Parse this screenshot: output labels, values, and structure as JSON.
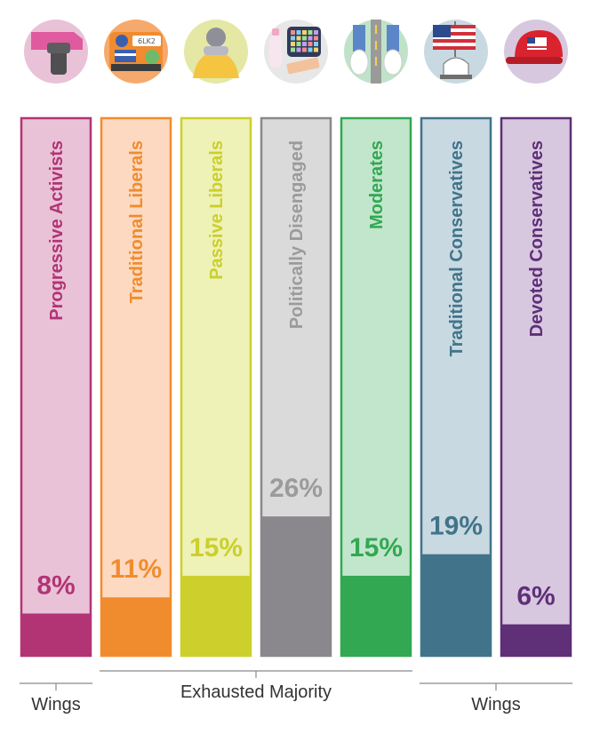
{
  "chart_data": {
    "type": "bar",
    "categories": [
      "Progressive Activists",
      "Traditional Liberals",
      "Passive Liberals",
      "Politically Disengaged",
      "Moderates",
      "Traditional Conservatives",
      "Devoted Conservatives"
    ],
    "values": [
      8,
      11,
      15,
      26,
      15,
      19,
      6
    ],
    "value_labels": [
      "8%",
      "11%",
      "15%",
      "26%",
      "15%",
      "19%",
      "6%"
    ],
    "unit": "%",
    "ylim": [
      0,
      100
    ],
    "grid": false,
    "legend": "none",
    "colors": {
      "dark": [
        "#b23474",
        "#f18c2e",
        "#cccf2c",
        "#8a888c",
        "#32a852",
        "#41748a",
        "#5f2f77"
      ],
      "light": [
        "#e9c2d8",
        "#fdd9c1",
        "#eef2b7",
        "#dadada",
        "#c2e6cc",
        "#c9d9e1",
        "#d7c8e0"
      ],
      "text": [
        "#b23474",
        "#f18c2e",
        "#cccf2c",
        "#9b9b9b",
        "#32a852",
        "#41748a",
        "#5f2f77"
      ]
    },
    "icons": [
      "pink-hat-raised-fist-icon",
      "car-license-plate-icon",
      "person-with-sweater-icon",
      "phone-apps-baby-bottle-icon",
      "sneakers-on-road-icon",
      "us-flag-capitol-icon",
      "red-cap-with-flag-icon"
    ],
    "groups": [
      {
        "label": "Wings",
        "from": 0,
        "to": 0
      },
      {
        "label": "Exhausted Majority",
        "from": 1,
        "to": 4
      },
      {
        "label": "Wings",
        "from": 5,
        "to": 6
      }
    ]
  }
}
